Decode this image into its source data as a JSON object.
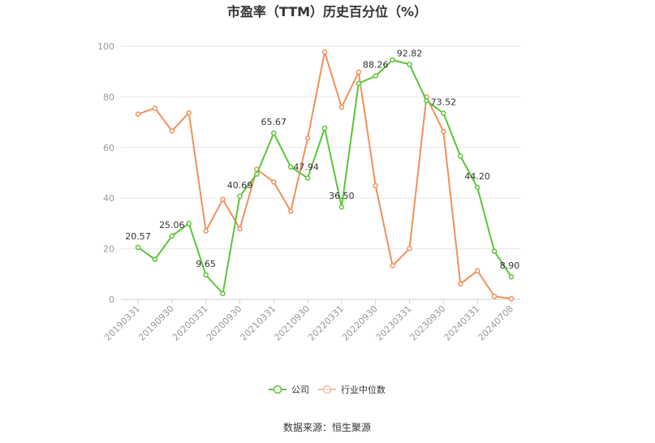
{
  "chart_data": {
    "type": "line",
    "title": "市盈率（TTM）历史百分位（%）",
    "source": "数据来源：恒生聚源",
    "ylim": [
      0,
      100
    ],
    "yticks": [
      0,
      20,
      40,
      60,
      80,
      100
    ],
    "grid": true,
    "legend_position": "bottom",
    "x": [
      "20190331",
      "20190630",
      "20190930",
      "20191231",
      "20200331",
      "20200630",
      "20200930",
      "20201231",
      "20210331",
      "20210630",
      "20210930",
      "20211231",
      "20220331",
      "20220630",
      "20220930",
      "20221231",
      "20230331",
      "20230630",
      "20230930",
      "20231231",
      "20240331",
      "20240630",
      "20240708"
    ],
    "x_tick_labels": [
      "20190331",
      "20190930",
      "20200331",
      "20200930",
      "20210331",
      "20210930",
      "20220331",
      "20220930",
      "20230331",
      "20230930",
      "20240331",
      "20240708"
    ],
    "series": [
      {
        "name": "公司",
        "color": "#5cc43a",
        "values": [
          20.57,
          15.8,
          25.06,
          30.0,
          9.65,
          2.3,
          40.69,
          49.5,
          65.67,
          52.3,
          47.94,
          67.6,
          36.5,
          85.3,
          88.26,
          94.6,
          92.82,
          78.5,
          73.52,
          56.6,
          44.2,
          19.0,
          8.9
        ],
        "labels": {
          "0": "20.57",
          "2": "25.06",
          "4": "9.65",
          "6": "40.69",
          "8": "65.67",
          "10": "47.94",
          "12": "36.50",
          "14": "88.26",
          "16": "92.82",
          "18": "73.52",
          "20": "44.20",
          "22": "8.90"
        }
      },
      {
        "name": "行业中位数",
        "color": "#f0915c",
        "values": [
          73.2,
          75.5,
          66.6,
          73.7,
          27.0,
          39.5,
          27.9,
          51.4,
          46.4,
          34.8,
          63.7,
          97.7,
          75.9,
          89.8,
          44.9,
          13.3,
          20.1,
          80.0,
          66.3,
          6.1,
          11.3,
          1.2,
          0.3
        ]
      }
    ]
  }
}
